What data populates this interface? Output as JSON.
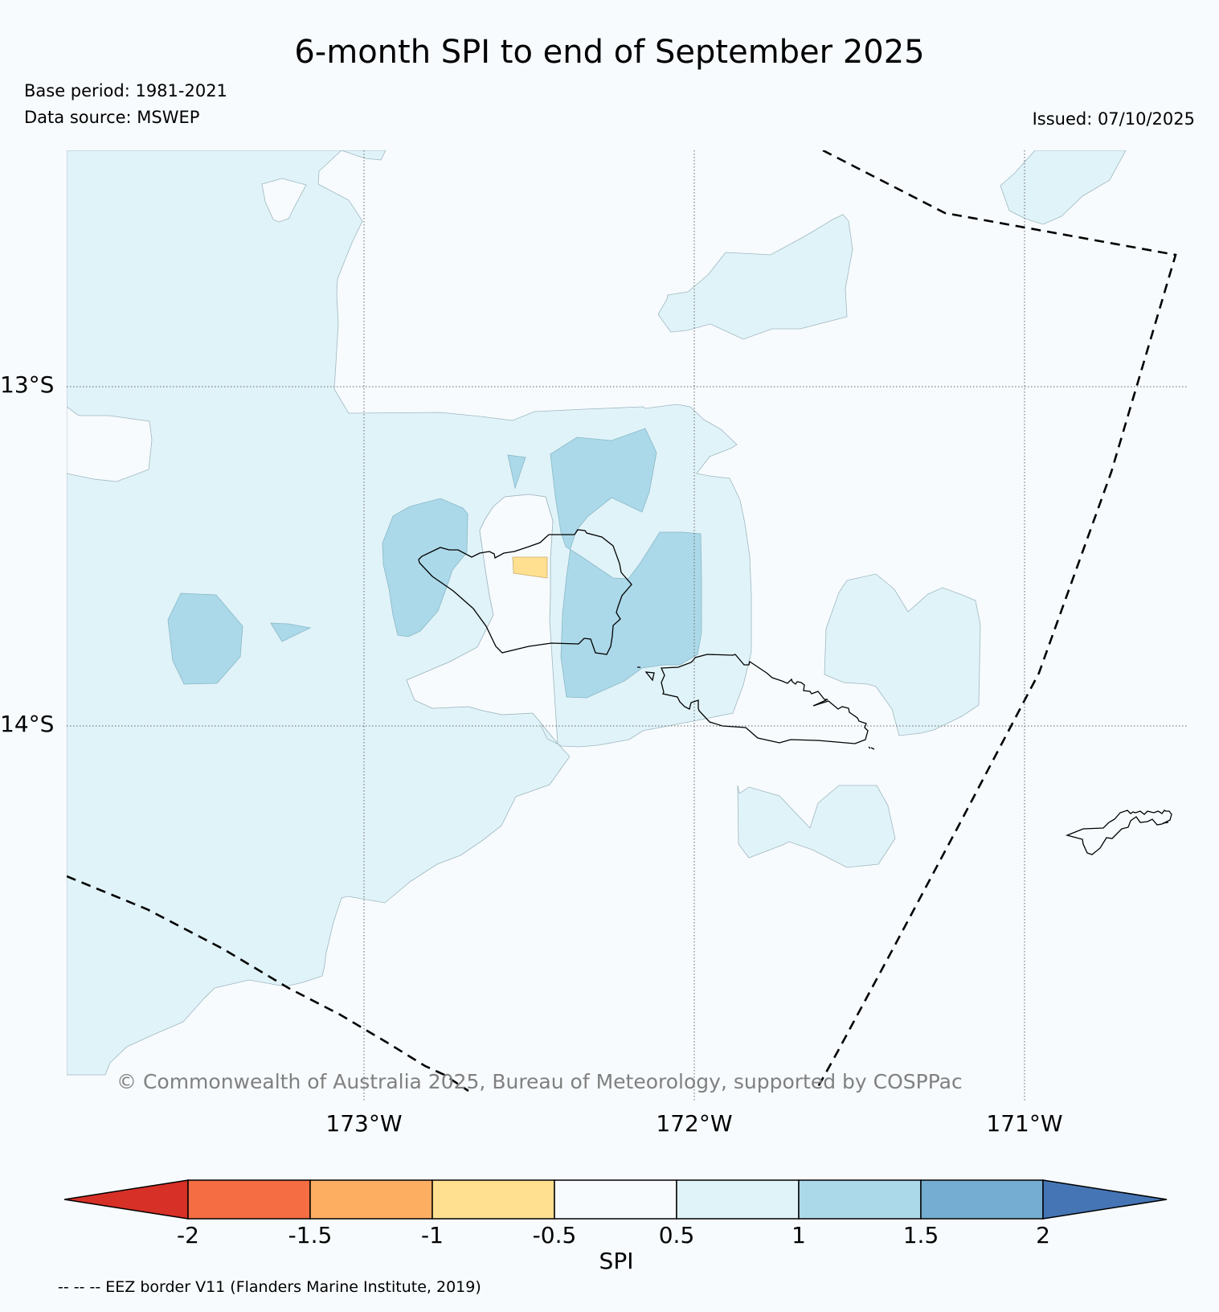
{
  "title": "6-month SPI to end of September 2025",
  "base_period": "Base period: 1981-2021",
  "data_source": "Data source: MSWEP",
  "issued": "Issued: 07/10/2025",
  "lat_labels": [
    "13°S",
    "14°S"
  ],
  "lon_labels": [
    "173°W",
    "172°W",
    "171°W"
  ],
  "copyright": "© Commonwealth of Australia 2025, Bureau of Meteorology, supported by COSPPac",
  "colorbar": {
    "label": "SPI",
    "ticks": [
      "-2",
      "-1.5",
      "-1",
      "-0.5",
      "0.5",
      "1",
      "1.5",
      "2"
    ],
    "bins": [
      {
        "range": "< -2",
        "color": "#d73027"
      },
      {
        "range": "-2 to -1.5",
        "color": "#f46d43"
      },
      {
        "range": "-1.5 to -1",
        "color": "#fdae61"
      },
      {
        "range": "-1 to -0.5",
        "color": "#fee090"
      },
      {
        "range": "-0.5 to 0.5",
        "color": "#f7fbfe"
      },
      {
        "range": "0.5 to 1",
        "color": "#e0f3f8"
      },
      {
        "range": "1 to 1.5",
        "color": "#abd9e9"
      },
      {
        "range": "1.5 to 2",
        "color": "#74add1"
      },
      {
        "range": "> 2",
        "color": "#4575b4"
      }
    ]
  },
  "eez_note": "-- -- -- EEZ border V11 (Flanders Marine Institute, 2019)"
}
